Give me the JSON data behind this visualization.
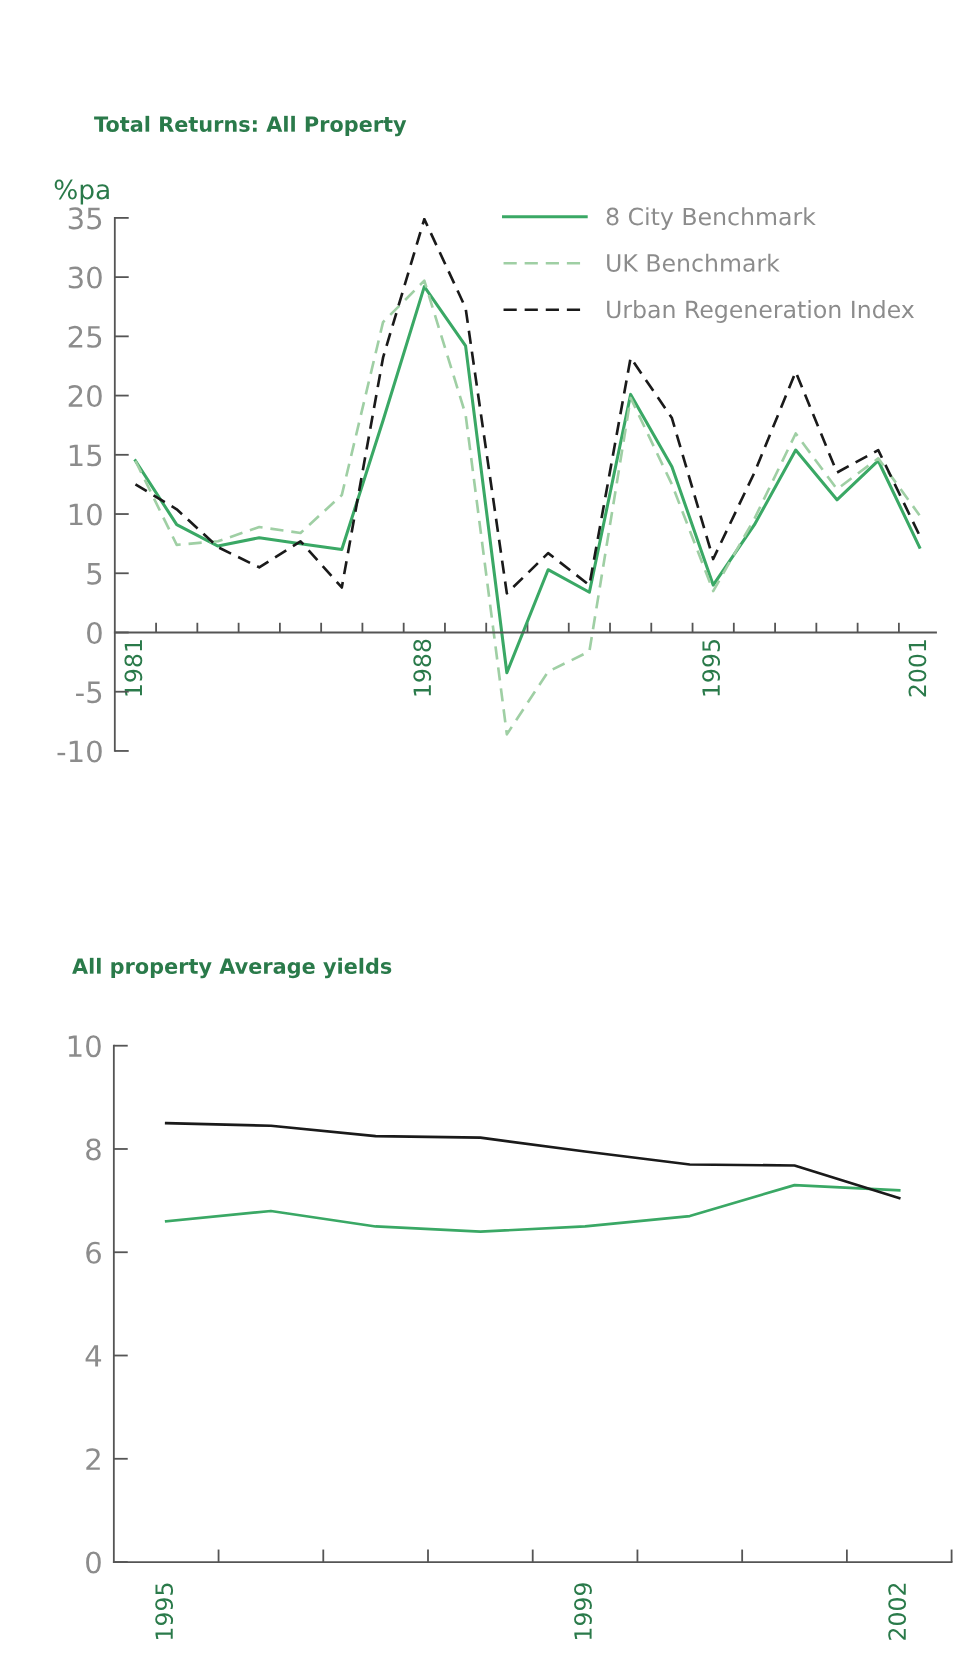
{
  "chart_data": [
    {
      "type": "line",
      "title": "Total Returns: All Property",
      "ylabel": "%pa",
      "categories": [
        "1981",
        null,
        null,
        null,
        null,
        null,
        null,
        "1988",
        null,
        null,
        null,
        null,
        null,
        null,
        "1995",
        null,
        null,
        null,
        null,
        "2001"
      ],
      "series": [
        {
          "name": "8 City Benchmark",
          "color": "#3aa865",
          "line_style": "solid",
          "values": [
            14.5,
            9.1,
            7.3,
            8.0,
            7.5,
            7.0,
            17.9,
            29.2,
            24.2,
            -3.4,
            5.3,
            3.4,
            20.1,
            14.0,
            4.0,
            9.1,
            15.4,
            11.2,
            14.5,
            7.2
          ]
        },
        {
          "name": "UK Benchmark",
          "color": "#9fcfa4",
          "line_style": "dashed",
          "values": [
            14.5,
            7.4,
            7.7,
            8.9,
            8.4,
            11.6,
            26.2,
            29.7,
            18.4,
            -8.6,
            -3.3,
            -1.6,
            19.8,
            12.5,
            3.5,
            9.6,
            16.8,
            12.1,
            14.7,
            9.9
          ]
        },
        {
          "name": "Urban Regeneration Index",
          "color": "#1a1a1a",
          "line_style": "dashed",
          "values": [
            12.5,
            10.4,
            7.2,
            5.5,
            7.7,
            3.8,
            23.2,
            34.9,
            27.4,
            3.3,
            6.7,
            4.0,
            23.2,
            18.1,
            6.2,
            13.5,
            22.0,
            13.5,
            15.4,
            8.2
          ]
        }
      ],
      "ylim": [
        -10,
        35
      ],
      "yticks": [
        -10,
        -5,
        0,
        5,
        10,
        15,
        20,
        25,
        30,
        35
      ],
      "grid": false,
      "legend": "top right"
    },
    {
      "type": "line",
      "title": "All property Average yields",
      "x": [
        1995,
        1996,
        1997,
        1998,
        1999,
        2000,
        2001,
        2002
      ],
      "series": [
        {
          "color": "#3aa865",
          "values": [
            6.6,
            6.8,
            6.5,
            6.4,
            6.5,
            6.7,
            7.3,
            7.2
          ]
        },
        {
          "color": "#1a1a1a",
          "values": [
            8.5,
            8.45,
            8.25,
            8.22,
            7.95,
            7.7,
            7.68,
            7.05
          ]
        }
      ],
      "xlim": [
        1994.5,
        2002.5
      ],
      "xticks": [
        1995,
        {
          "value": 1995.5,
          "label": null
        },
        {
          "value": 1996.5,
          "label": null
        },
        {
          "value": 1997.5,
          "label": null
        },
        {
          "value": 1998.5,
          "label": null
        },
        1999,
        {
          "value": 1999.5,
          "label": null
        },
        {
          "value": 2000.5,
          "label": null
        },
        {
          "value": 2001.5,
          "label": null
        },
        2002,
        {
          "value": 2002.5,
          "label": null
        }
      ],
      "ylim": [
        0,
        10
      ],
      "yticks": [
        0,
        2,
        4,
        6,
        8,
        10
      ],
      "grid": false,
      "legend": false
    }
  ]
}
